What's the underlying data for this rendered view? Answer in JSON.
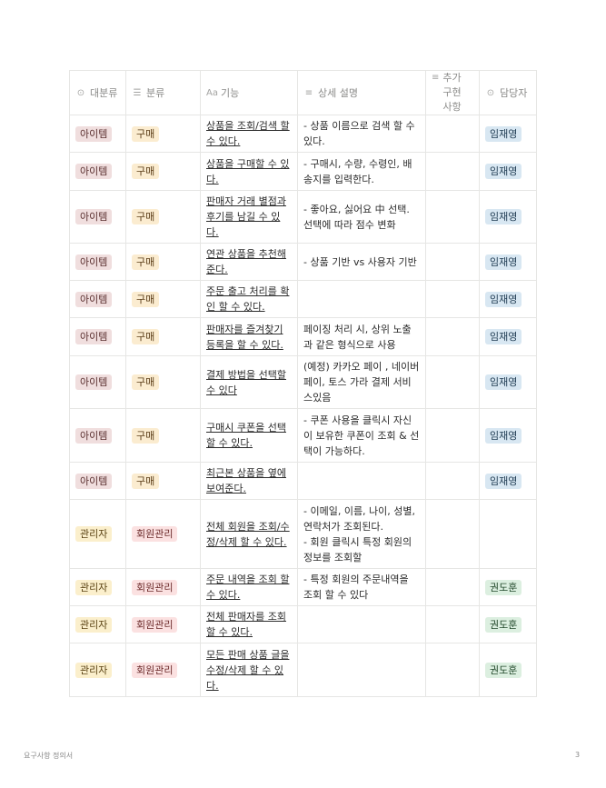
{
  "headers": {
    "category": "대분류",
    "class": "분류",
    "function": "기능",
    "detail": "상세 설명",
    "extra": "추가 구현 사항",
    "owner": "담당자"
  },
  "colors": {
    "tag_item": "#f0dede",
    "tag_buy": "#fbecd0",
    "tag_admin": "#fbefcc",
    "tag_member": "#fbe1e1",
    "owner_a": "#d8e7f2",
    "owner_b": "#dcefe0"
  },
  "rows": [
    {
      "category": "아이템",
      "class": "구매",
      "function": "상품을 조회/검색 할 수 있다.",
      "detail": "- 상품 이름으로 검색 할 수 있다.",
      "extra": "",
      "owner": "임재영"
    },
    {
      "category": "아이템",
      "class": "구매",
      "function": "상품을 구매할 수 있다.",
      "detail": "- 구매시, 수량, 수령인, 배송지를 입력한다.",
      "extra": "",
      "owner": "임재영"
    },
    {
      "category": "아이템",
      "class": "구매",
      "function": "판매자 거래 별점과 후기를 남길 수 있다.",
      "detail": "- 좋아요, 싫어요 中 선택. 선택에 따라 점수 변화",
      "extra": "",
      "owner": "임재영"
    },
    {
      "category": "아이템",
      "class": "구매",
      "function": "연관 상품을 추천해준다.",
      "detail": "- 상품 기반 vs 사용자 기반",
      "extra": "",
      "owner": "임재영"
    },
    {
      "category": "아이템",
      "class": "구매",
      "function": "주문 출고 처리를 확인 할 수 있다.",
      "detail": "",
      "extra": "",
      "owner": "임재영"
    },
    {
      "category": "아이템",
      "class": "구매",
      "function": "판매자를 즐겨찾기 등록을 할 수 있다.",
      "detail": "페이징 처리 시, 상위 노출과 같은 형식으로 사용",
      "extra": "",
      "owner": "임재영"
    },
    {
      "category": "아이템",
      "class": "구매",
      "function": "결제 방법을 선택할 수 있다",
      "detail": "(예정) 카카오 페이 , 네이버 페이, 토스 가라 결제 서비스있음",
      "extra": "",
      "owner": "임재영"
    },
    {
      "category": "아이템",
      "class": "구매",
      "function": "구매시 쿠폰을 선택 할 수 있다.",
      "detail": "- 쿠폰 사용을 클릭시 자신이 보유한 쿠폰이 조회 & 선택이 가능하다.",
      "extra": "",
      "owner": "임재영"
    },
    {
      "category": "아이템",
      "class": "구매",
      "function": "최근본 상품을 옆에 보여준다.",
      "detail": "",
      "extra": "",
      "owner": "임재영"
    },
    {
      "category": "관리자",
      "class": "회원관리",
      "function": "전체 회원을 조회/수정/삭제 할 수 있다.",
      "detail": "- 이메일, 이름, 나이, 성별, 연락처가 조회된다.\n- 회원 클릭시 특정 회원의 정보를 조회할",
      "extra": "",
      "owner": ""
    },
    {
      "category": "관리자",
      "class": "회원관리",
      "function": "주문 내역을 조회 할 수 있다.",
      "detail": "- 특정 회원의 주문내역을 조회 할 수 있다",
      "extra": "",
      "owner": "권도훈"
    },
    {
      "category": "관리자",
      "class": "회원관리",
      "function": "전체 판매자를 조회 할 수 있다.",
      "detail": "",
      "extra": "",
      "owner": "권도훈"
    },
    {
      "category": "관리자",
      "class": "회원관리",
      "function": "모든 판매 상품 글을 수정/삭제 할 수 있다.",
      "detail": "",
      "extra": "",
      "owner": "권도훈"
    }
  ],
  "footer": {
    "title": "요구사항 정의서",
    "page": "3"
  }
}
